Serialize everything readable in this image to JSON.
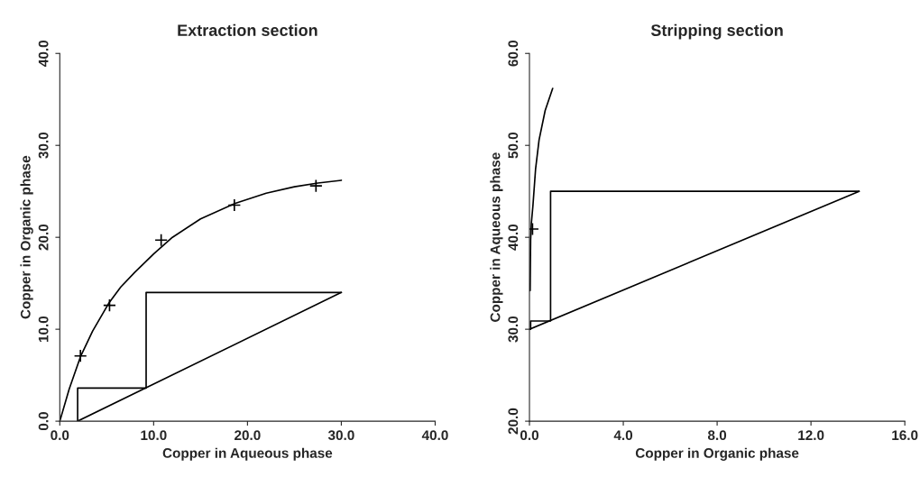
{
  "chart_data": [
    {
      "type": "line",
      "title": "Extraction section",
      "xlabel": "Copper in Aqueous phase",
      "ylabel": "Copper in Organic phase",
      "xlim": [
        0,
        40
      ],
      "ylim": [
        0,
        40
      ],
      "xticks": [
        {
          "value": 0,
          "label": "0.0"
        },
        {
          "value": 10,
          "label": "10.0"
        },
        {
          "value": 20,
          "label": "20.0"
        },
        {
          "value": 30,
          "label": "30.0"
        },
        {
          "value": 40,
          "label": "40.0"
        }
      ],
      "yticks": [
        {
          "value": 0,
          "label": "0.0"
        },
        {
          "value": 10,
          "label": "10.0"
        },
        {
          "value": 20,
          "label": "20.0"
        },
        {
          "value": 30,
          "label": "30.0"
        },
        {
          "value": 40,
          "label": "40.0"
        }
      ],
      "grid": false,
      "legend": false,
      "series": [
        {
          "color": "#000000",
          "x": [
            0,
            1,
            2.2,
            3.5,
            5.2,
            6.5,
            8,
            10,
            12,
            15,
            18.7,
            22,
            25,
            27.5,
            30
          ],
          "values": [
            0,
            3.5,
            7,
            9.8,
            12.8,
            14.6,
            16.2,
            18.2,
            20,
            22,
            23.7,
            24.8,
            25.5,
            25.9,
            26.2
          ]
        },
        {
          "type": "scatter",
          "color": "#000000",
          "marker": "cross",
          "x": [
            2.2,
            5.3,
            10.8,
            18.6,
            27.3
          ],
          "values": [
            7.1,
            12.6,
            19.7,
            23.5,
            25.6
          ]
        },
        {
          "color": "#000000",
          "x": [
            1.9,
            30
          ],
          "values": [
            0,
            14
          ]
        },
        {
          "color": "#000000",
          "x": [
            30,
            9.2,
            9.2,
            1.9,
            1.9
          ],
          "values": [
            14,
            14,
            3.6,
            3.6,
            0
          ]
        }
      ]
    },
    {
      "type": "line",
      "title": "Stripping section",
      "xlabel": "Copper in Organic phase",
      "ylabel": "Copper in Aqueous phase",
      "xlim": [
        0,
        16
      ],
      "ylim": [
        20,
        60
      ],
      "xticks": [
        {
          "value": 0,
          "label": "0.0"
        },
        {
          "value": 4,
          "label": "4.0"
        },
        {
          "value": 8,
          "label": "8.0"
        },
        {
          "value": 12,
          "label": "12.0"
        },
        {
          "value": 16,
          "label": "16.0"
        }
      ],
      "yticks": [
        {
          "value": 20,
          "label": "20.0"
        },
        {
          "value": 30,
          "label": "30.0"
        },
        {
          "value": 40,
          "label": "40.0"
        },
        {
          "value": 50,
          "label": "50.0"
        },
        {
          "value": 60,
          "label": "60.0"
        }
      ],
      "grid": false,
      "legend": false,
      "series": [
        {
          "color": "#000000",
          "x": [
            0.03,
            0.05,
            0.08,
            0.15,
            0.26,
            0.41,
            0.67,
            0.99
          ],
          "values": [
            34.2,
            39.7,
            41.5,
            43.5,
            47.4,
            50.6,
            53.8,
            56.2
          ]
        },
        {
          "type": "scatter",
          "color": "#000000",
          "marker": "cross",
          "x": [
            0.13
          ],
          "values": [
            40.9
          ]
        },
        {
          "color": "#000000",
          "x": [
            0,
            14.05
          ],
          "values": [
            30,
            45
          ]
        },
        {
          "color": "#000000",
          "x": [
            14.05,
            0.9,
            0.9,
            0.05,
            0.05
          ],
          "values": [
            45,
            45,
            30.9,
            30.9,
            30
          ]
        }
      ]
    }
  ]
}
